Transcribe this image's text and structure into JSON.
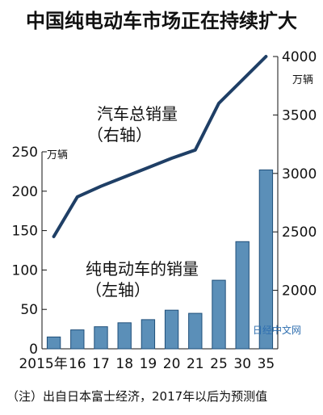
{
  "chart_data": {
    "type": "bar+line",
    "title": "中国纯电动车市场正在持续扩大",
    "categories": [
      "2015年",
      "16",
      "17",
      "18",
      "19",
      "20",
      "21",
      "25",
      "30",
      "35"
    ],
    "left_axis": {
      "unit": "万辆",
      "ylim": [
        0,
        250
      ],
      "ticks": [
        "0",
        "50",
        "100",
        "150",
        "200",
        "250"
      ]
    },
    "right_axis": {
      "unit": "万辆",
      "ylim": [
        1500,
        4000
      ],
      "ticks": [
        "2000",
        "2500",
        "3000",
        "3500",
        "4000"
      ]
    },
    "series": [
      {
        "name": "纯电动车的销量（左轴）",
        "axis": "left",
        "type": "bar",
        "values": [
          15,
          24,
          28,
          33,
          37,
          49,
          45,
          87,
          136,
          227
        ]
      },
      {
        "name": "汽车总销量（右轴）",
        "axis": "right",
        "type": "line",
        "values": [
          2460,
          2800,
          2890,
          2970,
          3050,
          3130,
          3200,
          3600,
          3800,
          4000
        ]
      }
    ],
    "annotations": {
      "line_label_1": "汽车总销量",
      "line_label_2": "（右轴）",
      "bar_label_1": "纯电动车的销量",
      "bar_label_2": "（左轴）"
    },
    "note": "（注）出自日本富士经济，2017年以后为预测值",
    "watermark": "日经中文网",
    "colors": {
      "bar_fill": "#5b8fb8",
      "bar_stroke": "#1f4f7a",
      "line": "#1f3f66",
      "axis": "#111111"
    }
  }
}
